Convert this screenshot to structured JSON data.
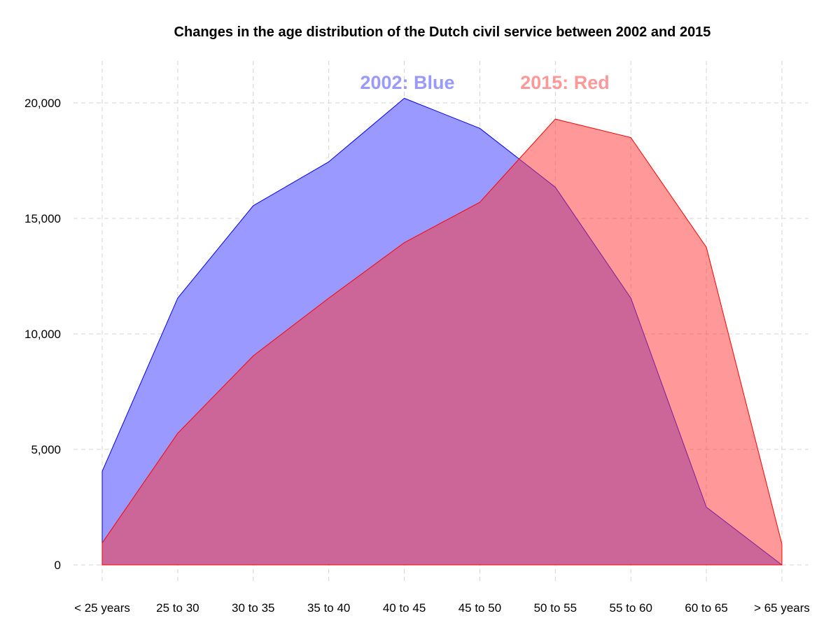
{
  "chart_data": {
    "type": "area",
    "title": "Changes in the age distribution of the Dutch civil service  between 2002 and 2015",
    "xlabel": "",
    "ylabel": "",
    "categories": [
      "< 25 years",
      "25 to 30",
      "30 to 35",
      "35 to 40",
      "40 to 45",
      "45 to 50",
      "50 to 55",
      "55 to 60",
      "60 to 65",
      "> 65 years"
    ],
    "ylim": [
      0,
      22000
    ],
    "yticks": [
      0,
      5000,
      10000,
      15000,
      20000
    ],
    "ytick_labels": [
      "0",
      "5,000",
      "10,000",
      "15,000",
      "20,000"
    ],
    "grid": true,
    "legend": "none",
    "series": [
      {
        "key": "2002",
        "values": [
          4050,
          11550,
          15550,
          17450,
          20200,
          18900,
          16350,
          11550,
          2500,
          0
        ],
        "fill": "#9999ff",
        "stroke": "#0000ff",
        "opacity": 1
      },
      {
        "key": "2015",
        "values": [
          950,
          5700,
          9050,
          11550,
          13950,
          15700,
          19300,
          18500,
          13750,
          900
        ],
        "fill": "#ff3333",
        "stroke": "#ff0000",
        "opacity": 0.5
      }
    ],
    "annotations": [
      {
        "text": "2002: Blue",
        "color": "#9999ff"
      },
      {
        "text": "2015: Red",
        "color": "#ff9999"
      }
    ]
  }
}
